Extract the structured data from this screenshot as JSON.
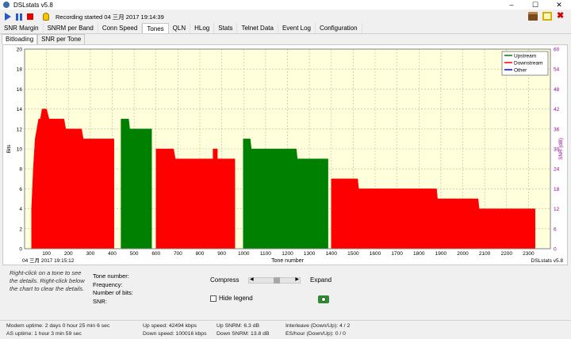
{
  "window": {
    "title": "DSLstats v5.8",
    "controls": [
      "–",
      "☐",
      "✕"
    ]
  },
  "toolbar": {
    "recording_text": "Recording started 04 三月 2017 19:14:39"
  },
  "tabs": [
    "SNR Margin",
    "SNRM per Band",
    "Conn Speed",
    "Tones",
    "QLN",
    "HLog",
    "Stats",
    "Telnet Data",
    "Event Log",
    "Configuration"
  ],
  "active_tab": "Tones",
  "subtabs": [
    "Bitloading",
    "SNR per Tone"
  ],
  "active_subtab": "Bitloading",
  "colors": {
    "upstream": "#008000",
    "downstream": "#ff0000",
    "other": "#0000ff",
    "plot_bg": "#ffffdc",
    "snr_axis": "#a000a0"
  },
  "chart_data": {
    "type": "area",
    "ylabel": "Bits",
    "y2label": "SNR (dB)",
    "xlabel": "Tone number",
    "timestamp": "04 三月 2017 19:15:12",
    "watermark": "DSLstats v5.8",
    "xlim": [
      0,
      2400
    ],
    "ylim": [
      0,
      20
    ],
    "y2lim": [
      0,
      60
    ],
    "x_ticks": [
      100,
      200,
      300,
      400,
      500,
      600,
      700,
      800,
      900,
      1000,
      1100,
      1200,
      1300,
      1400,
      1500,
      1600,
      1700,
      1800,
      1900,
      2000,
      2100,
      2200,
      2300
    ],
    "y_ticks": [
      0,
      2,
      4,
      6,
      8,
      10,
      12,
      14,
      16,
      18,
      20
    ],
    "y2_ticks": [
      0,
      6,
      12,
      18,
      24,
      30,
      36,
      42,
      48,
      54,
      60
    ],
    "grid": true,
    "legend_position": "top-right",
    "legend": [
      {
        "name": "Upstream",
        "color": "#008000"
      },
      {
        "name": "Downstream",
        "color": "#ff0000"
      },
      {
        "name": "Other",
        "color": "#0000ff"
      }
    ],
    "series": [
      {
        "name": "Downstream",
        "color": "#ff0000",
        "points": [
          [
            32,
            0
          ],
          [
            32,
            4
          ],
          [
            40,
            8
          ],
          [
            48,
            11
          ],
          [
            56,
            12
          ],
          [
            64,
            13
          ],
          [
            72,
            13
          ],
          [
            80,
            14
          ],
          [
            100,
            14
          ],
          [
            112,
            13
          ],
          [
            180,
            13
          ],
          [
            188,
            12
          ],
          [
            260,
            12
          ],
          [
            268,
            11
          ],
          [
            408,
            11
          ],
          [
            408,
            0
          ]
        ]
      },
      {
        "name": "Upstream",
        "color": "#008000",
        "points": [
          [
            440,
            0
          ],
          [
            440,
            13
          ],
          [
            475,
            13
          ],
          [
            480,
            12
          ],
          [
            580,
            12
          ],
          [
            580,
            0
          ]
        ]
      },
      {
        "name": "Downstream",
        "color": "#ff0000",
        "points": [
          [
            600,
            0
          ],
          [
            600,
            10
          ],
          [
            680,
            10
          ],
          [
            688,
            9
          ],
          [
            860,
            9
          ],
          [
            860,
            10
          ],
          [
            880,
            10
          ],
          [
            880,
            9
          ],
          [
            960,
            9
          ],
          [
            960,
            0
          ]
        ]
      },
      {
        "name": "Upstream",
        "color": "#008000",
        "points": [
          [
            998,
            0
          ],
          [
            998,
            11
          ],
          [
            1030,
            11
          ],
          [
            1035,
            10
          ],
          [
            1240,
            10
          ],
          [
            1245,
            9
          ],
          [
            1385,
            9
          ],
          [
            1385,
            0
          ]
        ]
      },
      {
        "name": "Downstream",
        "color": "#ff0000",
        "points": [
          [
            1400,
            0
          ],
          [
            1400,
            7
          ],
          [
            1520,
            7
          ],
          [
            1525,
            6
          ],
          [
            1700,
            6
          ],
          [
            1740,
            6
          ],
          [
            1800,
            6
          ],
          [
            1800,
            6
          ],
          [
            1880,
            6
          ],
          [
            1885,
            5
          ],
          [
            2070,
            5
          ],
          [
            2075,
            4
          ],
          [
            2330,
            4
          ],
          [
            2330,
            0
          ]
        ]
      }
    ]
  },
  "bottom": {
    "hint": "Right-click on a tone to see the details. Right-click below the chart to clear the details.",
    "fields": [
      "Tone number:",
      "Frequency:",
      "Number of bits:",
      "SNR:"
    ],
    "compress_label": "Compress",
    "expand_label": "Expand",
    "hide_legend_label": "Hide legend",
    "slider_value": 0.55
  },
  "status": {
    "modem_uptime": "Modem uptime: 2 days 0 hour 25 min 6 sec",
    "as_uptime": "AS uptime:  1 hour 3 min 59 sec",
    "up_speed": "Up speed: 42494 kbps",
    "down_speed": "Down speed: 100016 kbps",
    "up_snrm": "Up SNRM: 6.3 dB",
    "down_snrm": "Down SNRM: 13.8 dB",
    "interleave": "Interleave (Down/Up): 4 / 2",
    "es_hour": "ES/hour (Down/Up): 0 / 0"
  }
}
